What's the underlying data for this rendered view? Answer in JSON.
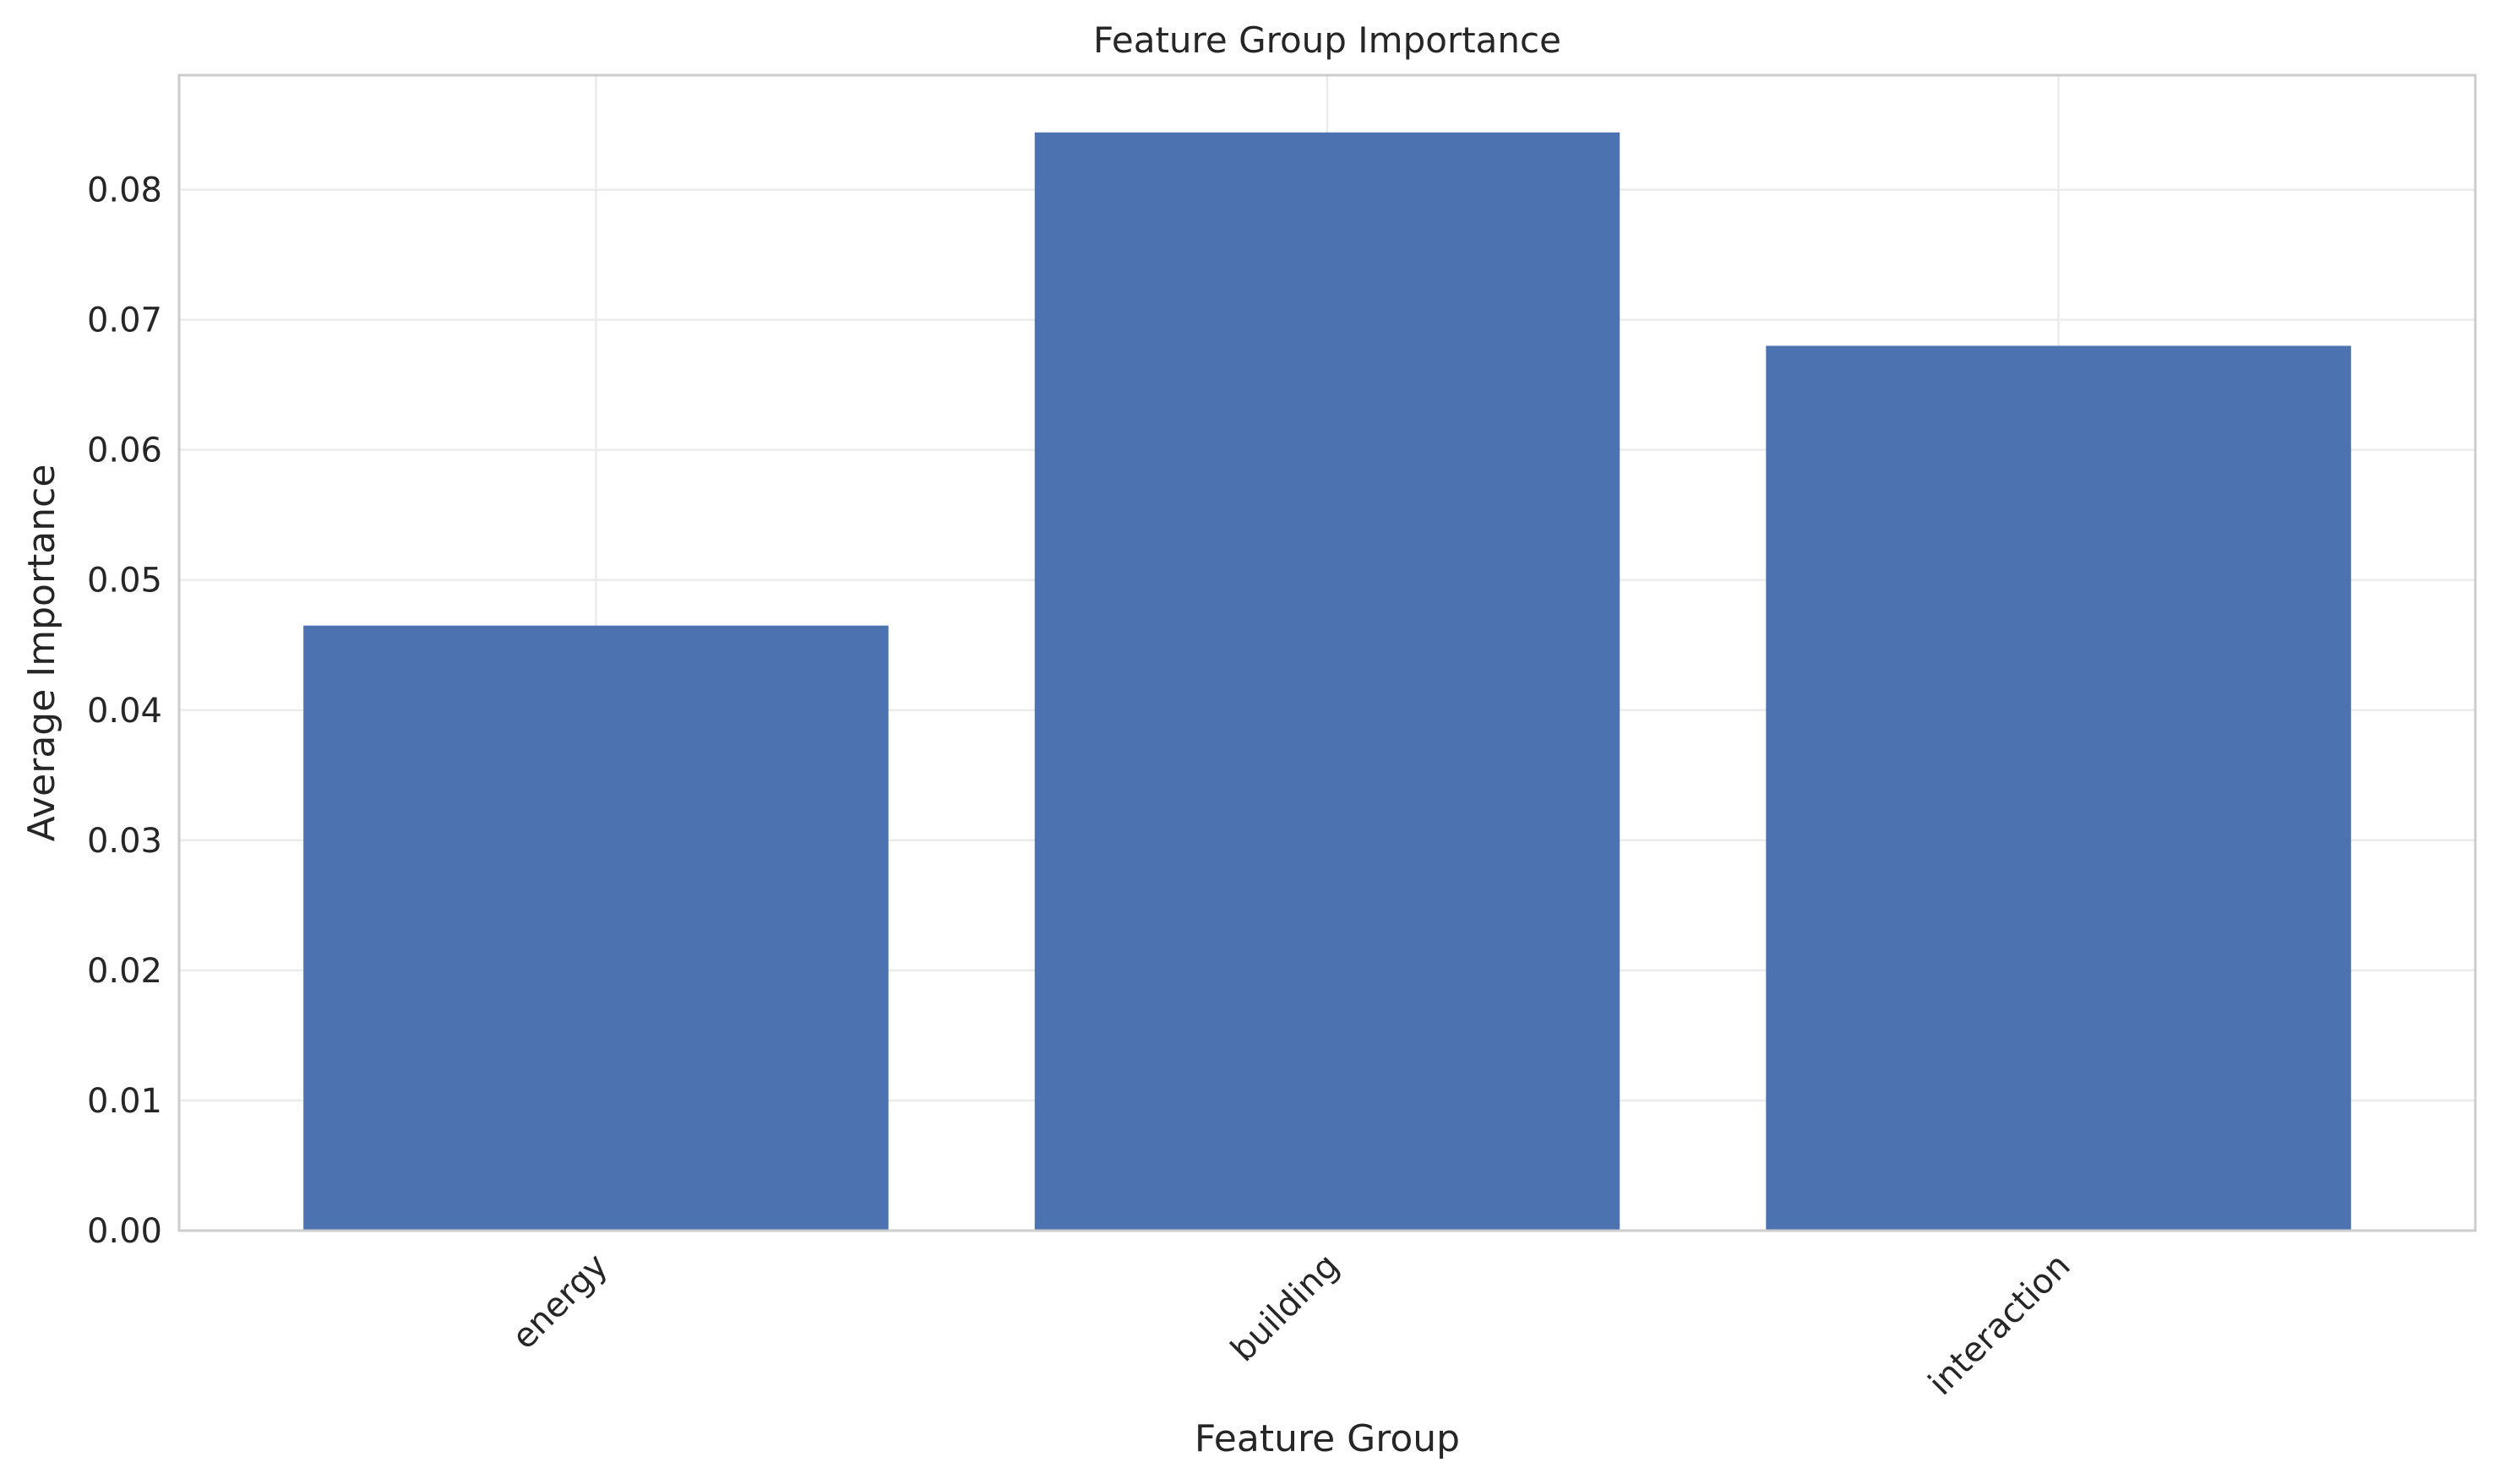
{
  "chart_data": {
    "type": "bar",
    "title": "Feature Group Importance",
    "xlabel": "Feature Group",
    "ylabel": "Average Importance",
    "categories": [
      "energy",
      "building",
      "interaction"
    ],
    "values": [
      0.0465,
      0.0844,
      0.068
    ],
    "ylim": [
      0,
      0.0888
    ],
    "yticks": [
      0.0,
      0.01,
      0.02,
      0.03,
      0.04,
      0.05,
      0.06,
      0.07,
      0.08
    ],
    "ytick_labels": [
      "0.00",
      "0.01",
      "0.02",
      "0.03",
      "0.04",
      "0.05",
      "0.06",
      "0.07",
      "0.08"
    ],
    "grid": true,
    "colors": {
      "bar": "#4C72B0",
      "grid": "#EBEBEB",
      "frame": "#CCCCCC",
      "text": "#262626"
    }
  }
}
